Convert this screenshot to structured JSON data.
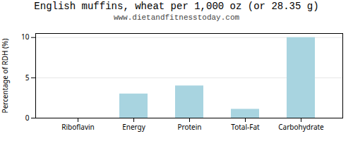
{
  "chart_data": {
    "type": "bar",
    "title": "English muffins, wheat per 1,000 oz (or 28.35 g)",
    "subtitle": "www.dietandfitnesstoday.com",
    "categories": [
      "Riboflavin",
      "Energy",
      "Protein",
      "Total-Fat",
      "Carbohydrate"
    ],
    "values": [
      0,
      3.0,
      4.0,
      1.1,
      10.0
    ],
    "color": "#a8d4e0",
    "ylabel": "Percentage of RDH (%)",
    "ylim": [
      0,
      10.5
    ],
    "yticks": [
      0,
      5,
      10
    ],
    "grid": true
  }
}
